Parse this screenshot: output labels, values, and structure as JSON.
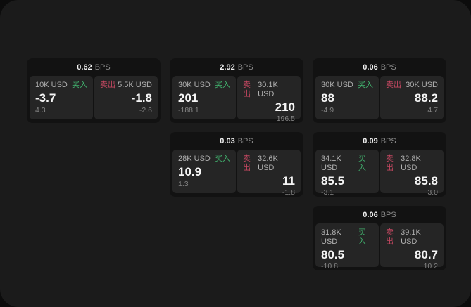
{
  "labels": {
    "unit": "BPS",
    "buy": "买入",
    "sell": "卖出"
  },
  "colors": {
    "panel_bg": "#1b1b1b",
    "card_bg": "#121212",
    "cell_bg": "#252525",
    "buy_green": "#42b46f",
    "sell_red": "#c24760",
    "text_primary": "#f5f5f5",
    "text_secondary": "#b0b0b0",
    "text_muted": "#848484"
  },
  "cards": [
    {
      "spread": "0.62",
      "buy": {
        "amount": "10K USD",
        "value": "-3.7",
        "sub": "4.3"
      },
      "sell": {
        "amount": "5.5K USD",
        "value": "-1.8",
        "sub": "-2.6"
      }
    },
    {
      "spread": "2.92",
      "buy": {
        "amount": "30K USD",
        "value": "201",
        "sub": "-188.1"
      },
      "sell": {
        "amount": "30.1K USD",
        "value": "210",
        "sub": "196.5"
      }
    },
    {
      "spread": "0.06",
      "buy": {
        "amount": "30K USD",
        "value": "88",
        "sub": "-4.9"
      },
      "sell": {
        "amount": "30K USD",
        "value": "88.2",
        "sub": "4.7"
      }
    },
    {
      "spread": "0.03",
      "buy": {
        "amount": "28K USD",
        "value": "10.9",
        "sub": "1.3"
      },
      "sell": {
        "amount": "32.6K USD",
        "value": "11",
        "sub": "-1.8"
      }
    },
    {
      "spread": "0.09",
      "buy": {
        "amount": "34.1K USD",
        "value": "85.5",
        "sub": "-3.1"
      },
      "sell": {
        "amount": "32.8K USD",
        "value": "85.8",
        "sub": "3.0"
      }
    },
    {
      "spread": "0.06",
      "buy": {
        "amount": "31.8K USD",
        "value": "80.5",
        "sub": "-10.8"
      },
      "sell": {
        "amount": "39.1K USD",
        "value": "80.7",
        "sub": "10.2"
      }
    }
  ]
}
